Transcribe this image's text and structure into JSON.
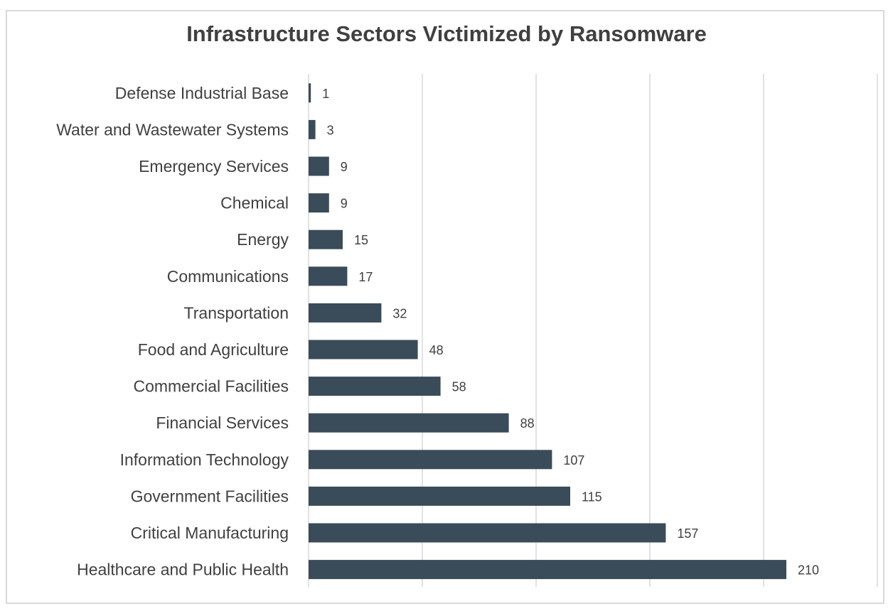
{
  "chart_data": {
    "type": "bar",
    "orientation": "horizontal",
    "title": "Infrastructure Sectors Victimized by Ransomware",
    "categories": [
      "Defense Industrial Base",
      "Water and Wastewater Systems",
      "Emergency Services",
      "Chemical",
      "Energy",
      "Communications",
      "Transportation",
      "Food and Agriculture",
      "Commercial Facilities",
      "Financial Services",
      "Information Technology",
      "Government Facilities",
      "Critical Manufacturing",
      "Healthcare and Public Health"
    ],
    "values": [
      1,
      3,
      9,
      9,
      15,
      17,
      32,
      48,
      58,
      88,
      107,
      115,
      157,
      210
    ],
    "xlim": [
      0,
      250
    ],
    "grid": "vertical",
    "legend": "none",
    "bar_color": "#3a4b59",
    "grid_color": "#d9d9d9",
    "text_color": "#404040"
  }
}
